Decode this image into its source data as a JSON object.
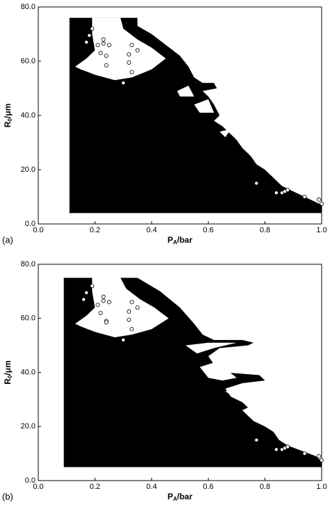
{
  "chart_data": [
    {
      "type": "scatter",
      "panel_label": "(a)",
      "xlabel": [
        "P",
        "A",
        "/bar"
      ],
      "ylabel": [
        "R",
        "0",
        "/μm"
      ],
      "xlim": [
        0,
        1
      ],
      "ylim": [
        0,
        80
      ],
      "xticks": [
        {
          "value": 0,
          "label": "0.0"
        },
        {
          "value": 0.2,
          "label": "0.2"
        },
        {
          "value": 0.4,
          "label": "0.4"
        },
        {
          "value": 0.6,
          "label": "0.6"
        },
        {
          "value": 0.8,
          "label": "0.8"
        },
        {
          "value": 1,
          "label": "1.0"
        }
      ],
      "yticks": [
        {
          "value": 0,
          "label": "0.0"
        },
        {
          "value": 20,
          "label": "20.0"
        },
        {
          "value": 40,
          "label": "40.0"
        },
        {
          "value": 60,
          "label": "60.0"
        },
        {
          "value": 80,
          "label": "80.0"
        }
      ],
      "regions": [
        {
          "color": "#000000",
          "x": [
            0.11,
            0.11,
            0.19,
            0.19,
            0.29,
            0.29,
            0.35,
            0.35,
            0.4,
            0.45,
            0.5,
            0.53,
            0.55,
            0.58,
            0.62,
            0.63,
            0.58,
            0.6,
            0.62,
            0.64,
            0.62,
            0.65,
            0.67,
            0.7,
            0.72,
            0.75,
            0.77,
            0.8,
            0.83,
            0.86,
            0.9,
            0.94,
            0.98,
            1.0,
            1.0
          ],
          "y": [
            4,
            76,
            76,
            76,
            76,
            76,
            76,
            73,
            70,
            66,
            62,
            58,
            54,
            52,
            52,
            50,
            49,
            47,
            44,
            40,
            38,
            36,
            34,
            31,
            28,
            25,
            22,
            20,
            17,
            14,
            12,
            10,
            8,
            7,
            4
          ]
        },
        {
          "color": "#ffffff",
          "x": [
            0.19,
            0.29,
            0.3,
            0.35,
            0.4,
            0.45,
            0.4,
            0.33,
            0.27,
            0.2,
            0.15,
            0.13,
            0.17,
            0.2,
            0.19
          ],
          "y": [
            76,
            76,
            72,
            68,
            65,
            61,
            57,
            54,
            53,
            55,
            57,
            58,
            61,
            64,
            70
          ]
        },
        {
          "color": "#ffffff",
          "x": [
            0.49,
            0.53,
            0.55,
            0.5
          ],
          "y": [
            49,
            51,
            47,
            47
          ]
        },
        {
          "color": "#ffffff",
          "x": [
            0.55,
            0.6,
            0.62,
            0.57
          ],
          "y": [
            44,
            46,
            41,
            41
          ]
        },
        {
          "color": "#ffffff",
          "x": [
            0.64,
            0.68,
            0.66
          ],
          "y": [
            34,
            35,
            32
          ]
        }
      ],
      "x": [
        0.17,
        0.18,
        0.19,
        0.21,
        0.22,
        0.23,
        0.23,
        0.24,
        0.24,
        0.25,
        0.32,
        0.32,
        0.33,
        0.33,
        0.35,
        0.3,
        0.77,
        0.84,
        0.86,
        0.87,
        0.88,
        0.94,
        0.99,
        1.0
      ],
      "y": [
        67,
        69.5,
        72,
        66,
        63,
        66.5,
        68,
        62,
        58.5,
        66,
        59.5,
        62.5,
        66,
        56,
        64,
        52,
        15,
        11.5,
        11.5,
        12,
        12.5,
        10,
        9,
        7.5
      ]
    },
    {
      "type": "scatter",
      "panel_label": "(b)",
      "xlabel": [
        "P",
        "A",
        "/bar"
      ],
      "ylabel": [
        "R",
        "0",
        "/μm"
      ],
      "xlim": [
        0,
        1
      ],
      "ylim": [
        0,
        80
      ],
      "xticks": [
        {
          "value": 0,
          "label": "0.0"
        },
        {
          "value": 0.2,
          "label": "0.2"
        },
        {
          "value": 0.4,
          "label": "0.4"
        },
        {
          "value": 0.6,
          "label": "0.6"
        },
        {
          "value": 0.8,
          "label": "0.8"
        },
        {
          "value": 1,
          "label": "1.0"
        }
      ],
      "yticks": [
        {
          "value": 0,
          "label": "0.0"
        },
        {
          "value": 20,
          "label": "20.0"
        },
        {
          "value": 40,
          "label": "40.0"
        },
        {
          "value": 60,
          "label": "60.0"
        },
        {
          "value": 80,
          "label": "80.0"
        }
      ],
      "regions": [
        {
          "color": "#000000",
          "x": [
            0.09,
            0.09,
            0.19,
            0.29,
            0.35,
            0.43,
            0.5,
            0.55,
            0.58,
            0.62,
            0.72,
            0.76,
            0.74,
            0.64,
            0.6,
            0.62,
            0.66,
            0.78,
            0.8,
            0.72,
            0.66,
            0.68,
            0.72,
            0.74,
            0.72,
            0.74,
            0.76,
            0.8,
            0.83,
            0.85,
            0.88,
            0.93,
            0.98,
            1.0,
            1.0
          ],
          "y": [
            5,
            75,
            75,
            75,
            75,
            70,
            64,
            58,
            54,
            52,
            52,
            51,
            50,
            49,
            46,
            43,
            40,
            39,
            37,
            36,
            34,
            31,
            29,
            27,
            26,
            24,
            22,
            20,
            18,
            15,
            13,
            11,
            9,
            7,
            5
          ]
        },
        {
          "color": "#ffffff",
          "x": [
            0.19,
            0.29,
            0.31,
            0.36,
            0.41,
            0.46,
            0.4,
            0.33,
            0.27,
            0.2,
            0.15,
            0.13,
            0.17,
            0.2,
            0.19
          ],
          "y": [
            75,
            75,
            71,
            67,
            64,
            60,
            56,
            54,
            53,
            55,
            57,
            58,
            61,
            64,
            70
          ]
        },
        {
          "color": "#ffffff",
          "x": [
            0.52,
            0.6,
            0.7,
            0.62,
            0.56
          ],
          "y": [
            50,
            51,
            51,
            49,
            47
          ]
        },
        {
          "color": "#ffffff",
          "x": [
            0.57,
            0.63,
            0.7,
            0.65,
            0.6
          ],
          "y": [
            42,
            44,
            38,
            37,
            38
          ]
        },
        {
          "color": "#ffffff",
          "x": [
            0.66,
            0.7,
            0.69
          ],
          "y": [
            33,
            34,
            31
          ]
        }
      ],
      "x": [
        0.16,
        0.17,
        0.19,
        0.21,
        0.22,
        0.23,
        0.23,
        0.24,
        0.24,
        0.25,
        0.32,
        0.32,
        0.33,
        0.33,
        0.35,
        0.3,
        0.77,
        0.84,
        0.86,
        0.87,
        0.88,
        0.94,
        0.99,
        1.0
      ],
      "y": [
        67,
        69.5,
        72,
        65,
        62,
        66.5,
        68,
        59,
        58.5,
        66,
        59.5,
        62.5,
        66,
        56,
        64,
        52,
        15,
        11.5,
        11.5,
        12,
        12.5,
        10,
        9,
        7.5
      ]
    }
  ]
}
